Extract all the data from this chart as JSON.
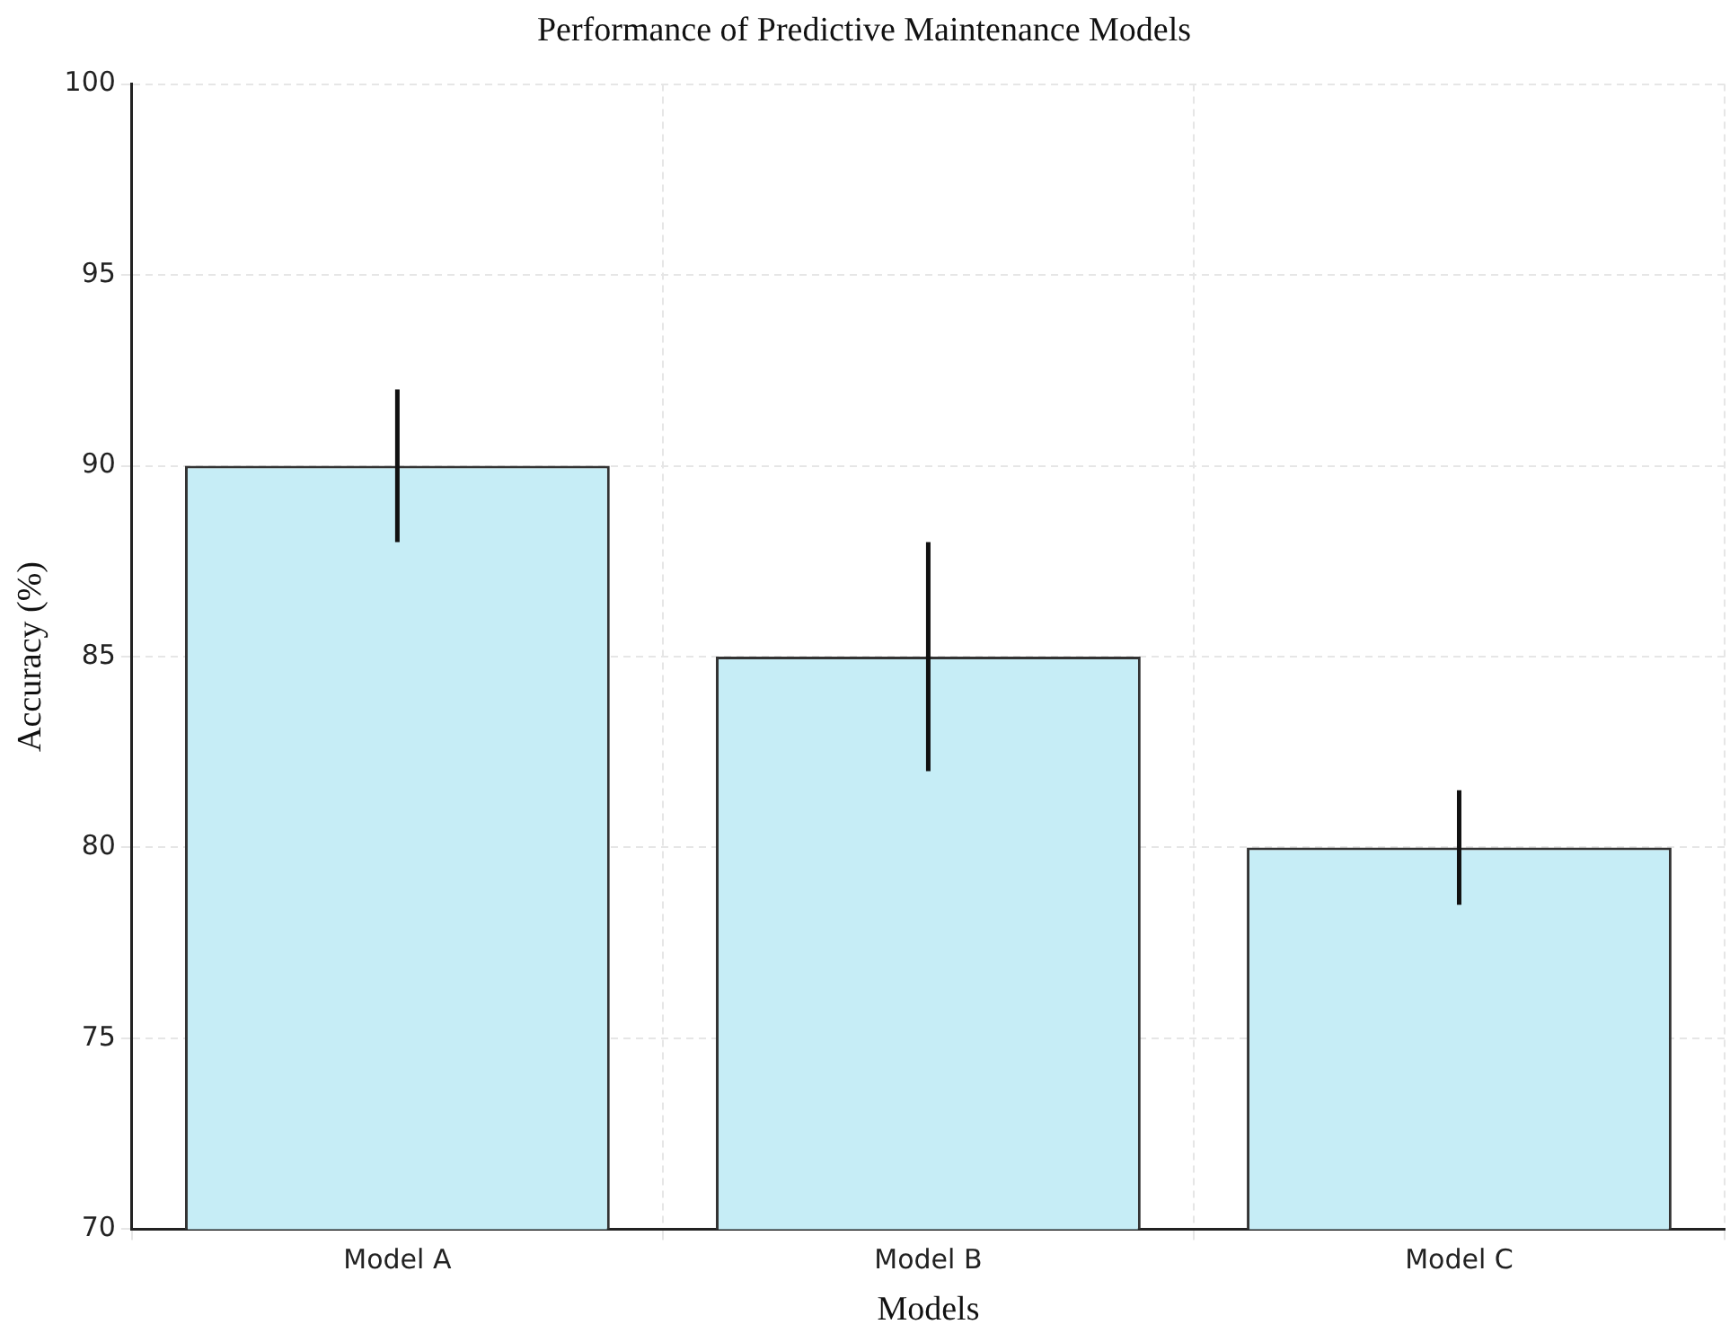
{
  "chart_data": {
    "type": "bar",
    "title": "Performance of Predictive Maintenance Models",
    "xlabel": "Models",
    "ylabel": "Accuracy (%)",
    "categories": [
      "Model A",
      "Model B",
      "Model C"
    ],
    "values": [
      90,
      85,
      80
    ],
    "errors": [
      2,
      3,
      1.5
    ],
    "color": "#c6edf6",
    "ylim": [
      70,
      100
    ],
    "yticks": [
      70,
      75,
      80,
      85,
      90,
      95,
      100
    ],
    "grid": true,
    "legend": false
  }
}
